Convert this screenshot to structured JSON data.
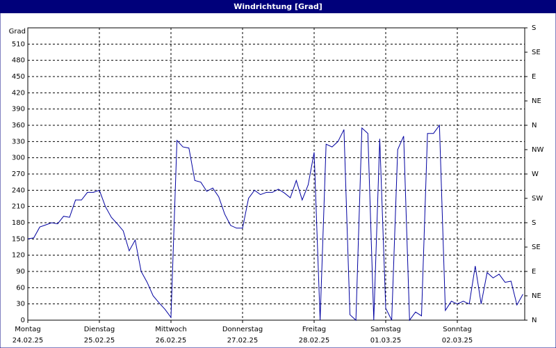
{
  "chart_data": {
    "type": "line",
    "title": "Windrichtung [Grad]",
    "y_label": "Grad",
    "categories": [
      "Montag",
      null,
      null,
      null,
      null,
      null,
      null,
      null,
      null,
      null,
      null,
      null,
      "Dienstag",
      null,
      null,
      null,
      null,
      null,
      null,
      null,
      null,
      null,
      null,
      null,
      "Mittwoch",
      null,
      null,
      null,
      null,
      null,
      null,
      null,
      null,
      null,
      null,
      null,
      "Donnerstag",
      null,
      null,
      null,
      null,
      null,
      null,
      null,
      null,
      null,
      null,
      null,
      "Freitag",
      null,
      null,
      null,
      null,
      null,
      null,
      null,
      null,
      null,
      null,
      null,
      "Samstag",
      null,
      null,
      null,
      null,
      null,
      null,
      null,
      null,
      null,
      null,
      null,
      "Sonntag",
      null,
      null,
      null,
      null,
      null,
      null,
      null,
      null,
      null,
      null,
      null
    ],
    "dates": [
      "24.02.25",
      null,
      null,
      null,
      null,
      null,
      null,
      null,
      null,
      null,
      null,
      null,
      "25.02.25",
      null,
      null,
      null,
      null,
      null,
      null,
      null,
      null,
      null,
      null,
      null,
      "26.02.25",
      null,
      null,
      null,
      null,
      null,
      null,
      null,
      null,
      null,
      null,
      null,
      "27.02.25",
      null,
      null,
      null,
      null,
      null,
      null,
      null,
      null,
      null,
      null,
      null,
      "28.02.25",
      null,
      null,
      null,
      null,
      null,
      null,
      null,
      null,
      null,
      null,
      null,
      "01.03.25",
      null,
      null,
      null,
      null,
      null,
      null,
      null,
      null,
      null,
      null,
      null,
      "02.03.25",
      null,
      null,
      null,
      null,
      null,
      null,
      null,
      null,
      null,
      null,
      null
    ],
    "values": [
      150,
      152,
      172,
      176,
      180,
      178,
      192,
      190,
      222,
      222,
      236,
      236,
      240,
      210,
      190,
      178,
      165,
      128,
      148,
      90,
      70,
      45,
      32,
      20,
      5,
      332,
      320,
      318,
      258,
      255,
      238,
      244,
      228,
      196,
      175,
      170,
      170,
      225,
      240,
      232,
      236,
      236,
      242,
      235,
      226,
      258,
      222,
      250,
      310,
      0,
      325,
      320,
      330,
      352,
      10,
      0,
      355,
      345,
      0,
      335,
      22,
      0,
      315,
      340,
      0,
      15,
      8,
      345,
      345,
      360,
      18,
      35,
      30,
      35,
      30,
      100,
      30,
      88,
      78,
      85,
      70,
      72,
      28,
      48
    ],
    "color": "#0000a0",
    "ylim": [
      0,
      540
    ],
    "yticks": [
      0,
      30,
      60,
      90,
      120,
      150,
      180,
      210,
      240,
      270,
      300,
      330,
      360,
      390,
      420,
      450,
      480,
      510
    ],
    "y2lim": [
      0,
      540
    ],
    "y2ticks": [
      {
        "value": 0,
        "label": "N"
      },
      {
        "value": 45,
        "label": "NE"
      },
      {
        "value": 90,
        "label": "E"
      },
      {
        "value": 135,
        "label": "SE"
      },
      {
        "value": 180,
        "label": "S"
      },
      {
        "value": 225,
        "label": "SW"
      },
      {
        "value": 270,
        "label": "W"
      },
      {
        "value": 315,
        "label": "NW"
      },
      {
        "value": 360,
        "label": "N"
      },
      {
        "value": 405,
        "label": "NE"
      },
      {
        "value": 450,
        "label": "E"
      },
      {
        "value": 495,
        "label": "SE"
      },
      {
        "value": 540,
        "label": "S"
      }
    ],
    "grid": true
  }
}
